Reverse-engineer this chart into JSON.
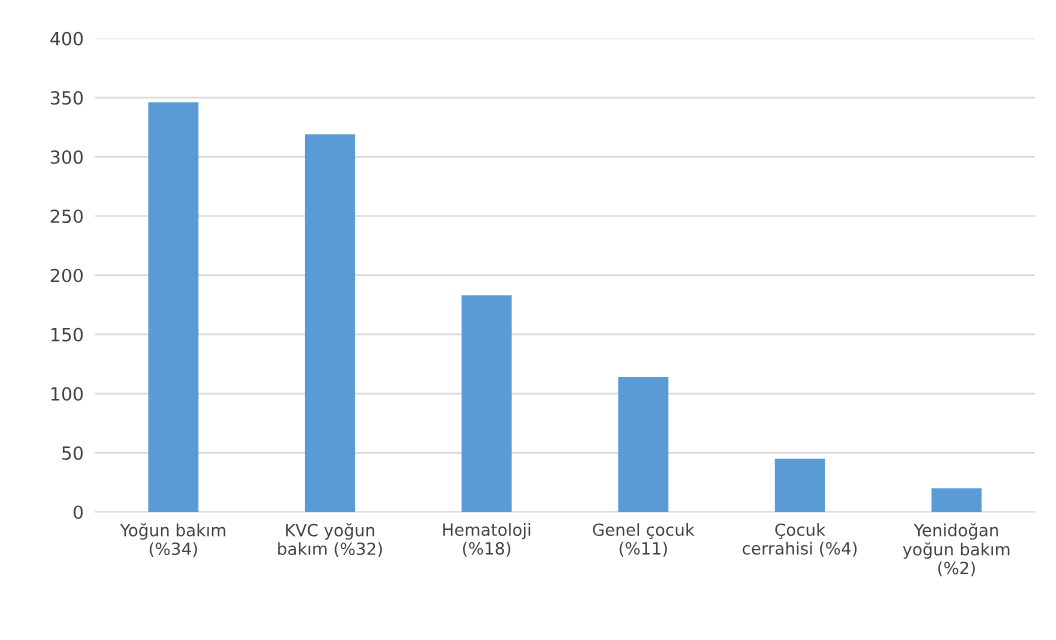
{
  "chart_data": {
    "type": "bar",
    "categories": [
      "Yoğun bakım\n(%34)",
      "KVC yoğun\nbakım (%32)",
      "Hematoloji\n(%18)",
      "Genel çocuk\n(%11)",
      "Çocuk\ncerrahisi (%4)",
      "Yenidoğan\nyoğun bakım\n(%2)"
    ],
    "values": [
      346,
      319,
      183,
      114,
      45,
      20
    ],
    "color": "#5b9bd5",
    "ylim": [
      0,
      400
    ],
    "yticks": [
      0,
      50,
      100,
      150,
      200,
      250,
      300,
      350,
      400
    ],
    "grid": "y"
  }
}
